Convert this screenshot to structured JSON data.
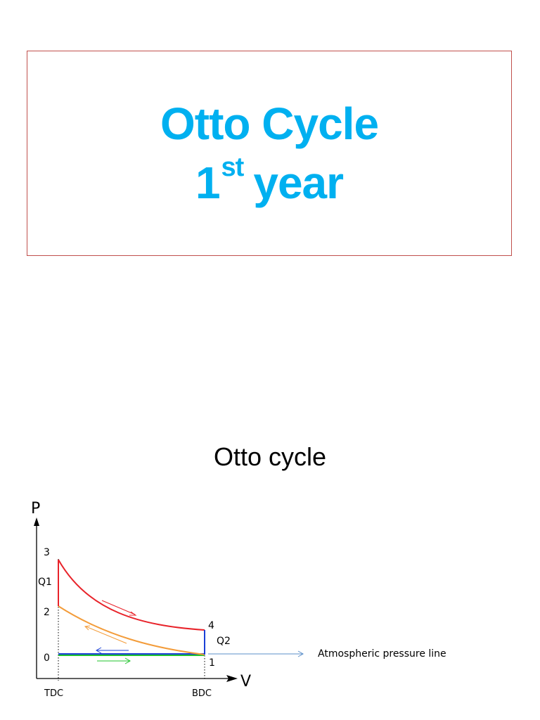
{
  "title_slide": {
    "line1": "Otto Cycle",
    "line2_number": "1",
    "line2_superscript": "st",
    "line2_word": "year",
    "title_color": "#00b0f0",
    "border_color": "#c0504d"
  },
  "section": {
    "heading": "Otto cycle"
  },
  "diagram": {
    "axis_y_label": "P",
    "axis_x_label": "V",
    "point_3": "3",
    "point_2": "2",
    "point_0": "0",
    "point_4": "4",
    "point_1": "1",
    "heat_in": "Q1",
    "heat_out": "Q2",
    "tdc": "TDC",
    "bdc": "BDC",
    "atmospheric_label": "Atmospheric pressure line",
    "colors": {
      "expansion": "#e8232a",
      "compression": "#f39c3a",
      "exhaust": "#1a3fd6",
      "intake": "#22c32e",
      "atmospheric": "#5b8fc9",
      "heat_rejection": "#1a3fd6",
      "heat_addition": "#e8232a"
    }
  }
}
